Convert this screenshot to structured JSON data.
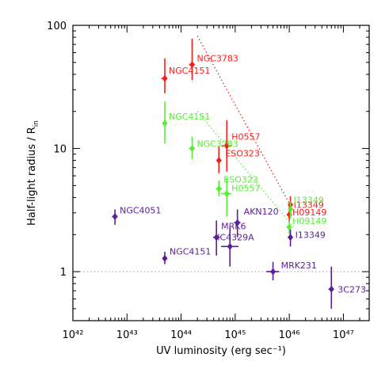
{
  "chart_data": {
    "type": "scatter",
    "xlabel": "UV luminosity (erg sec⁻¹)",
    "ylabel": "Half-light radius / R",
    "ylabel_sub": "in",
    "xscale": "log",
    "yscale": "log",
    "xlim": [
      1e+42,
      3e+47
    ],
    "ylim": [
      0.4,
      100
    ],
    "x_tick_labels": [
      "10⁴²",
      "10⁴³",
      "10⁴⁴",
      "10⁴⁵",
      "10⁴⁶",
      "10⁴⁷"
    ],
    "y_tick_labels": [
      "1",
      "10",
      "100"
    ],
    "reference_line": {
      "y": 1,
      "style": "dotted",
      "color": "#b0b0b0"
    },
    "series": [
      {
        "color": "#ff1a1a",
        "points": [
          {
            "label": "NGC3783",
            "x": 1.6e+44,
            "y": 48,
            "yerr": [
              36,
              78
            ],
            "xerr": [
              1.4e+44,
              1.8e+44
            ]
          },
          {
            "label": "NGC4151",
            "x": 5e+43,
            "y": 37,
            "yerr": [
              28,
              54
            ],
            "xerr": [
              4.3e+43,
              5.6e+43
            ]
          },
          {
            "label": "H0557",
            "x": 7e+44,
            "y": 10.5,
            "yerr": [
              6.5,
              17
            ],
            "xerr": [
              5.6e+44,
              8.5e+44
            ]
          },
          {
            "label": "ESO323",
            "x": 5e+44,
            "y": 8,
            "yerr": [
              6.3,
              10.5
            ],
            "xerr": [
              4.6e+44,
              5.5e+44
            ]
          },
          {
            "label": "I13349",
            "x": 1.05e+46,
            "y": 3.5,
            "yerr": [
              2.9,
              4.1
            ],
            "xerr": [
              9.5e+45,
              1.15e+46
            ]
          },
          {
            "label": "H09149",
            "x": 1e+46,
            "y": 2.9,
            "yerr": [
              2.5,
              3.4
            ],
            "xerr": [
              9e+45,
              1.1e+46
            ]
          }
        ],
        "trend_line": {
          "x": [
            2e+44,
            1.2e+46
          ],
          "y": [
            82,
            3.1
          ]
        }
      },
      {
        "color": "#55ee33",
        "points": [
          {
            "label": "NGC4151",
            "x": 5e+43,
            "y": 16,
            "yerr": [
              11,
              24
            ],
            "xerr": [
              4.5e+43,
              5.5e+43
            ]
          },
          {
            "label": "NGC3783",
            "x": 1.6e+44,
            "y": 10,
            "yerr": [
              8.2,
              12.5
            ],
            "xerr": [
              1.4e+44,
              1.8e+44
            ]
          },
          {
            "label": "ESO323",
            "x": 5e+44,
            "y": 4.7,
            "yerr": [
              4.1,
              5.5
            ],
            "xerr": [
              4.4e+44,
              5.7e+44
            ]
          },
          {
            "label": "H0557",
            "x": 7e+44,
            "y": 4.3,
            "yerr": [
              2.8,
              5.8
            ],
            "xerr": [
              5.5e+44,
              8.6e+44
            ]
          },
          {
            "label": "I13349",
            "x": 1.05e+46,
            "y": 3.2,
            "yerr": [
              2.7,
              3.7
            ],
            "xerr": [
              9.5e+45,
              1.15e+46
            ]
          },
          {
            "label": "H09149",
            "x": 1e+46,
            "y": 2.3,
            "yerr": [
              2.0,
              2.6
            ],
            "xerr": [
              9e+45,
              1.1e+46
            ]
          }
        ],
        "trend_line": {
          "x": [
            2e+44,
            1.2e+46
          ],
          "y": [
            20,
            2.3
          ]
        }
      },
      {
        "color": "#5a1e96",
        "points": [
          {
            "label": "NGC4051",
            "x": 6e+42,
            "y": 2.8,
            "yerr": [
              2.4,
              3.2
            ],
            "xerr": [
              5.3e+42,
              6.7e+42
            ]
          },
          {
            "label": "NGC4151",
            "x": 5e+43,
            "y": 1.28,
            "yerr": [
              1.15,
              1.45
            ],
            "xerr": [
              4.5e+43,
              5.5e+43
            ]
          },
          {
            "label": "MRK6",
            "x": 4.5e+44,
            "y": 1.9,
            "yerr": [
              1.35,
              2.6
            ],
            "xerr": [
              3.9e+44,
              5.2e+44
            ]
          },
          {
            "label": "AKN120",
            "x": 1.1e+45,
            "y": 2.5,
            "yerr": [
              1.9,
              3.2
            ],
            "xerr": [
              9.5e+44,
              1.25e+45
            ]
          },
          {
            "label": "IC4329A",
            "x": 8e+44,
            "y": 1.6,
            "yerr": [
              1.1,
              2.3
            ],
            "xerr": [
              5.5e+44,
              1.15e+45
            ]
          },
          {
            "label": "I13349",
            "x": 1.05e+46,
            "y": 1.9,
            "yerr": [
              1.6,
              2.2
            ],
            "xerr": [
              9.5e+45,
              1.15e+46
            ]
          },
          {
            "label": "MRK231",
            "x": 5e+45,
            "y": 1.0,
            "yerr": [
              0.85,
              1.2
            ],
            "xerr": [
              3.8e+45,
              6.5e+45
            ]
          },
          {
            "label": "3C273",
            "x": 6e+46,
            "y": 0.72,
            "yerr": [
              0.5,
              1.1
            ],
            "xerr": [
              5.3e+46,
              6.7e+46
            ]
          }
        ]
      }
    ]
  }
}
